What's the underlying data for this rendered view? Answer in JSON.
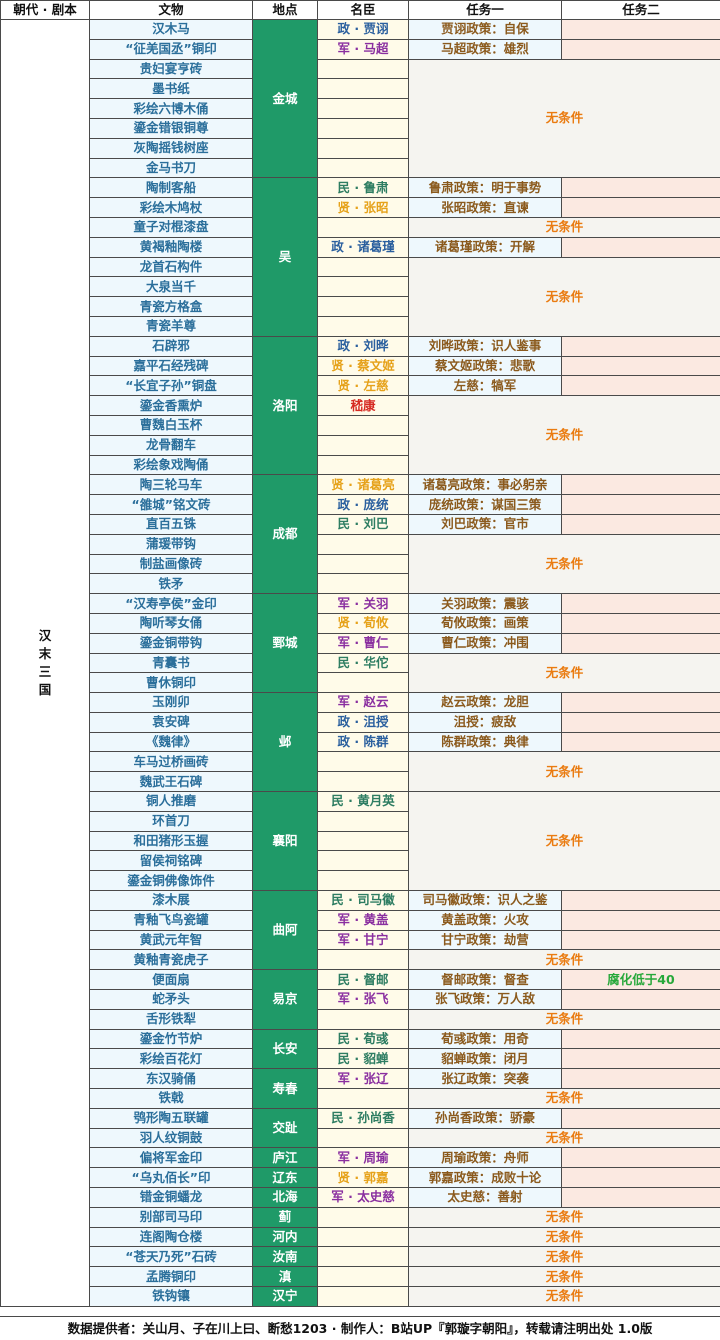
{
  "headers": [
    "朝代 · 剧本",
    "文物",
    "地点",
    "名臣",
    "任务一",
    "任务二"
  ],
  "era": "汉末三国",
  "no_condition": "无条件",
  "locations": [
    {
      "name": "金城",
      "relics": [
        "汉木马",
        "“征羌国丞”铜印",
        "贵妇宴亨砖",
        "墨书纸",
        "彩绘六博木俑",
        "鎏金错银铜尊",
        "灰陶摇钱树座",
        "金马书刀"
      ],
      "entries": [
        [
          "政 · 贾诩",
          "贾诩政策：自保"
        ],
        [
          "军 · 马超",
          "马超政策：雄烈"
        ]
      ]
    },
    {
      "name": "吴",
      "relics": [
        "陶制客船",
        "彩绘木鸠杖",
        "童子对棍漆盘",
        "黄褐釉陶楼",
        "龙首石构件",
        "大泉当千",
        "青瓷方格盒",
        "青瓷羊尊"
      ],
      "entries": [
        [
          "民 · 鲁肃",
          "鲁肃政策：明于事势"
        ],
        [
          "贤 · 张昭",
          "张昭政策：直谏"
        ],
        [
          "",
          ""
        ],
        [
          "政 · 诸葛瑾",
          "诸葛瑾政策：开解"
        ]
      ]
    },
    {
      "name": "洛阳",
      "relics": [
        "石辟邪",
        "嘉平石经残碑",
        "“长宜子孙”铜盘",
        "鎏金香熏炉",
        "曹魏白玉杯",
        "龙骨翻车",
        "彩绘象戏陶俑"
      ],
      "entries": [
        [
          "政 · 刘晔",
          "刘晔政策：识人鉴事"
        ],
        [
          "贤 · 蔡文姬",
          "蔡文姬政策：悲歌"
        ],
        [
          "贤 · 左慈",
          "左慈：犒军"
        ],
        [
          "嵇康",
          ""
        ]
      ]
    },
    {
      "name": "成都",
      "relics": [
        "陶三轮马车",
        "“雒城”铭文砖",
        "直百五铢",
        "蒲瑗带钩",
        "制盐画像砖",
        "铁矛"
      ],
      "entries": [
        [
          "贤 · 诸葛亮",
          "诸葛亮政策：事必躬亲"
        ],
        [
          "政 · 庞统",
          "庞统政策：谋国三策"
        ],
        [
          "民 · 刘巴",
          "刘巴政策：官市"
        ]
      ]
    },
    {
      "name": "鄄城",
      "relics": [
        "“汉寿亭侯”金印",
        "陶听琴女俑",
        "鎏金铜带钩",
        "青囊书",
        "曹休铜印"
      ],
      "entries": [
        [
          "军 · 关羽",
          "关羽政策：震骇"
        ],
        [
          "贤 · 荀攸",
          "荀攸政策：画策"
        ],
        [
          "军 · 曹仁",
          "曹仁政策：冲围"
        ],
        [
          "民 · 华佗",
          ""
        ]
      ]
    },
    {
      "name": "邺",
      "relics": [
        "玉刚卯",
        "袁安碑",
        "《魏律》",
        "车马过桥画砖",
        "魏武王石碑"
      ],
      "entries": [
        [
          "军 · 赵云",
          "赵云政策：龙胆"
        ],
        [
          "政 · 沮授",
          "沮授：疲敌"
        ],
        [
          "政 · 陈群",
          "陈群政策：典律"
        ]
      ]
    },
    {
      "name": "襄阳",
      "relics": [
        "铜人推磨",
        "环首刀",
        "和田猪形玉握",
        "留侯祠铭碑",
        "鎏金铜佛像饰件"
      ],
      "entries": [
        [
          "民 · 黄月英",
          ""
        ]
      ]
    },
    {
      "name": "曲阿",
      "relics": [
        "漆木展",
        "青釉飞鸟瓷罐",
        "黄武元年智",
        "黄釉青瓷虎子"
      ],
      "entries": [
        [
          "民 · 司马徽",
          "司马徽政策：识人之鉴"
        ],
        [
          "军 · 黄盖",
          "黄盖政策：火攻"
        ],
        [
          "军 · 甘宁",
          "甘宁政策：劫营"
        ]
      ]
    },
    {
      "name": "易京",
      "relics": [
        "便面扇",
        "蛇矛头",
        "舌形铁犁"
      ],
      "entries": [
        [
          "民 · 督邮",
          "督邮政策：督查",
          "腐化低于40"
        ],
        [
          "军 · 张飞",
          "张飞政策：万人敌"
        ]
      ]
    },
    {
      "name": "长安",
      "relics": [
        "鎏金竹节炉",
        "彩绘百花灯"
      ],
      "entries": [
        [
          "民 · 荀彧",
          "荀彧政策：用奇"
        ],
        [
          "民 · 貂蝉",
          "貂蝉政策：闭月"
        ]
      ]
    },
    {
      "name": "寿春",
      "relics": [
        "东汉骑俑",
        "铁戟"
      ],
      "entries": [
        [
          "军 · 张辽",
          "张辽政策：突袭"
        ]
      ]
    },
    {
      "name": "交趾",
      "relics": [
        "鸮形陶五联罐",
        "羽人纹铜鼓"
      ],
      "entries": [
        [
          "民 · 孙尚香",
          "孙尚香政策：骄豪"
        ]
      ]
    },
    {
      "name": "庐江",
      "relics": [
        "偏将军金印"
      ],
      "entries": [
        [
          "军 · 周瑜",
          "周瑜政策：舟师"
        ]
      ]
    },
    {
      "name": "辽东",
      "relics": [
        "“乌丸佰长”印"
      ],
      "entries": [
        [
          "贤 · 郭嘉",
          "郭嘉政策：成败十论"
        ]
      ]
    },
    {
      "name": "北海",
      "relics": [
        "错金铜蟠龙"
      ],
      "entries": [
        [
          "军 · 太史慈",
          "太史慈：善射"
        ]
      ]
    },
    {
      "name": "蓟",
      "relics": [
        "别部司马印"
      ],
      "entries": []
    },
    {
      "name": "河内",
      "relics": [
        "连阁陶仓楼"
      ],
      "entries": []
    },
    {
      "name": "汝南",
      "relics": [
        "“苍天乃死”石砖"
      ],
      "entries": []
    },
    {
      "name": "滇",
      "relics": [
        "孟腾铜印"
      ],
      "entries": []
    },
    {
      "name": "汉宁",
      "relics": [
        "铁钩镶"
      ],
      "entries": []
    }
  ],
  "footer": "数据提供者：关山月、子在川上曰、断愁1203 · 制作人：B站UP『郭璇字朝阳』，转载请注明出处 1.0版"
}
